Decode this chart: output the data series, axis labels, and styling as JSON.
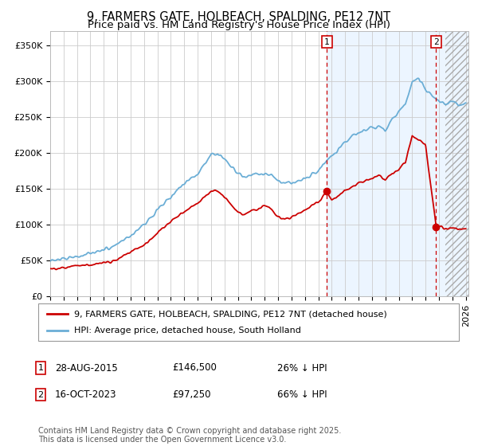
{
  "title1": "9, FARMERS GATE, HOLBEACH, SPALDING, PE12 7NT",
  "title2": "Price paid vs. HM Land Registry's House Price Index (HPI)",
  "ylabel_ticks": [
    "£0",
    "£50K",
    "£100K",
    "£150K",
    "£200K",
    "£250K",
    "£300K",
    "£350K"
  ],
  "ytick_vals": [
    0,
    50000,
    100000,
    150000,
    200000,
    250000,
    300000,
    350000
  ],
  "ylim": [
    0,
    370000
  ],
  "xlim_start": 1995.0,
  "xlim_end": 2026.2,
  "hpi_color": "#6baed6",
  "price_color": "#cc0000",
  "marker1_x": 2015.65,
  "marker1_y": 146500,
  "marker1_label": "1",
  "marker1_date": "28-AUG-2015",
  "marker1_price": "£146,500",
  "marker1_pct": "26% ↓ HPI",
  "marker2_x": 2023.79,
  "marker2_y": 97250,
  "marker2_label": "2",
  "marker2_date": "16-OCT-2023",
  "marker2_price": "£97,250",
  "marker2_pct": "66% ↓ HPI",
  "legend_line1": "9, FARMERS GATE, HOLBEACH, SPALDING, PE12 7NT (detached house)",
  "legend_line2": "HPI: Average price, detached house, South Holland",
  "footer": "Contains HM Land Registry data © Crown copyright and database right 2025.\nThis data is licensed under the Open Government Licence v3.0.",
  "bg_color": "#ffffff",
  "plot_bg_color": "#ffffff",
  "grid_color": "#cccccc",
  "shade_start": 2015.65,
  "shade_end": 2026.2,
  "hatch_start": 2024.5,
  "title_fontsize": 10.5,
  "subtitle_fontsize": 9.5,
  "tick_fontsize": 8,
  "legend_fontsize": 8,
  "footer_fontsize": 7
}
